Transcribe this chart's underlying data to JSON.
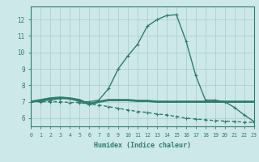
{
  "x": [
    0,
    1,
    2,
    3,
    4,
    5,
    6,
    7,
    8,
    9,
    10,
    11,
    12,
    13,
    14,
    15,
    16,
    17,
    18,
    19,
    20,
    21,
    22,
    23
  ],
  "line1": [
    7.0,
    7.05,
    7.1,
    7.2,
    7.2,
    7.0,
    7.0,
    7.1,
    7.8,
    9.0,
    9.8,
    10.5,
    11.6,
    12.0,
    12.25,
    12.3,
    10.7,
    8.6,
    7.1,
    7.1,
    7.0,
    6.65,
    6.2,
    5.8
  ],
  "line2": [
    7.0,
    7.1,
    7.2,
    7.25,
    7.2,
    7.1,
    6.85,
    7.0,
    7.1,
    7.1,
    7.1,
    7.05,
    7.05,
    7.0,
    7.0,
    7.0,
    7.0,
    7.0,
    7.0,
    7.0,
    7.0,
    7.0,
    7.0,
    7.0
  ],
  "line3": [
    7.0,
    7.0,
    7.0,
    7.0,
    6.95,
    6.95,
    6.85,
    6.8,
    6.7,
    6.6,
    6.5,
    6.4,
    6.35,
    6.25,
    6.2,
    6.1,
    6.0,
    5.95,
    5.9,
    5.85,
    5.82,
    5.8,
    5.75,
    5.75
  ],
  "line_color": "#2e7d6e",
  "bg_color": "#cde8e8",
  "grid_color": "#aed0d0",
  "xlabel": "Humidex (Indice chaleur)",
  "ylim": [
    5.5,
    12.8
  ],
  "xlim": [
    0,
    23
  ],
  "yticks": [
    6,
    7,
    8,
    9,
    10,
    11,
    12
  ],
  "xticks": [
    0,
    1,
    2,
    3,
    4,
    5,
    6,
    7,
    8,
    9,
    10,
    11,
    12,
    13,
    14,
    15,
    16,
    17,
    18,
    19,
    20,
    21,
    22,
    23
  ]
}
